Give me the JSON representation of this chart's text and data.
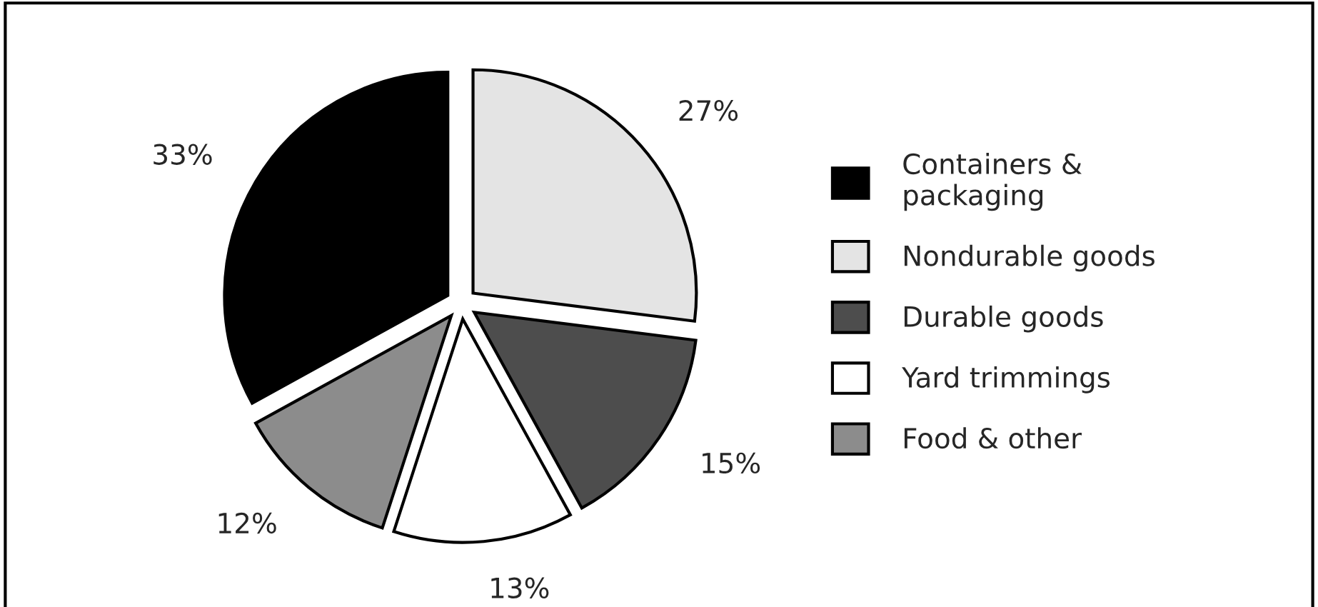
{
  "chart_data": {
    "type": "pie",
    "categories": [
      "Containers &\npackaging",
      "Nondurable goods",
      "Durable goods",
      "Yard trimmings",
      "Food & other"
    ],
    "values": [
      33,
      27,
      15,
      13,
      12
    ],
    "colors": [
      "#000000",
      "#e4e4e4",
      "#4d4d4d",
      "#ffffff",
      "#8c8c8c"
    ],
    "value_labels": [
      "33%",
      "27%",
      "15%",
      "13%",
      "12%"
    ],
    "legend": "right"
  }
}
